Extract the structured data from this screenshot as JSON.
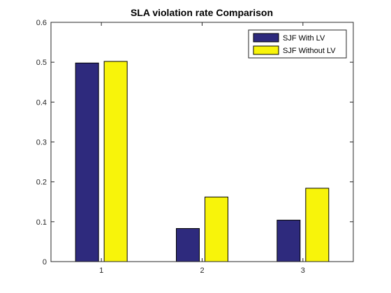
{
  "chart_data": {
    "type": "bar",
    "title": "SLA violation rate Comparison",
    "xlabel": "",
    "ylabel": "",
    "categories": [
      "1",
      "2",
      "3"
    ],
    "series": [
      {
        "name": "SJF With LV",
        "color": "#2e2a7d",
        "values": [
          0.498,
          0.083,
          0.104
        ]
      },
      {
        "name": "SJF Without LV",
        "color": "#f8f40a",
        "values": [
          0.502,
          0.162,
          0.184
        ]
      }
    ],
    "ylim": [
      0,
      0.6
    ],
    "yticks": [
      "0",
      "0.1",
      "0.2",
      "0.3",
      "0.4",
      "0.5",
      "0.6"
    ],
    "grid": false,
    "legend_position": "top-right"
  }
}
